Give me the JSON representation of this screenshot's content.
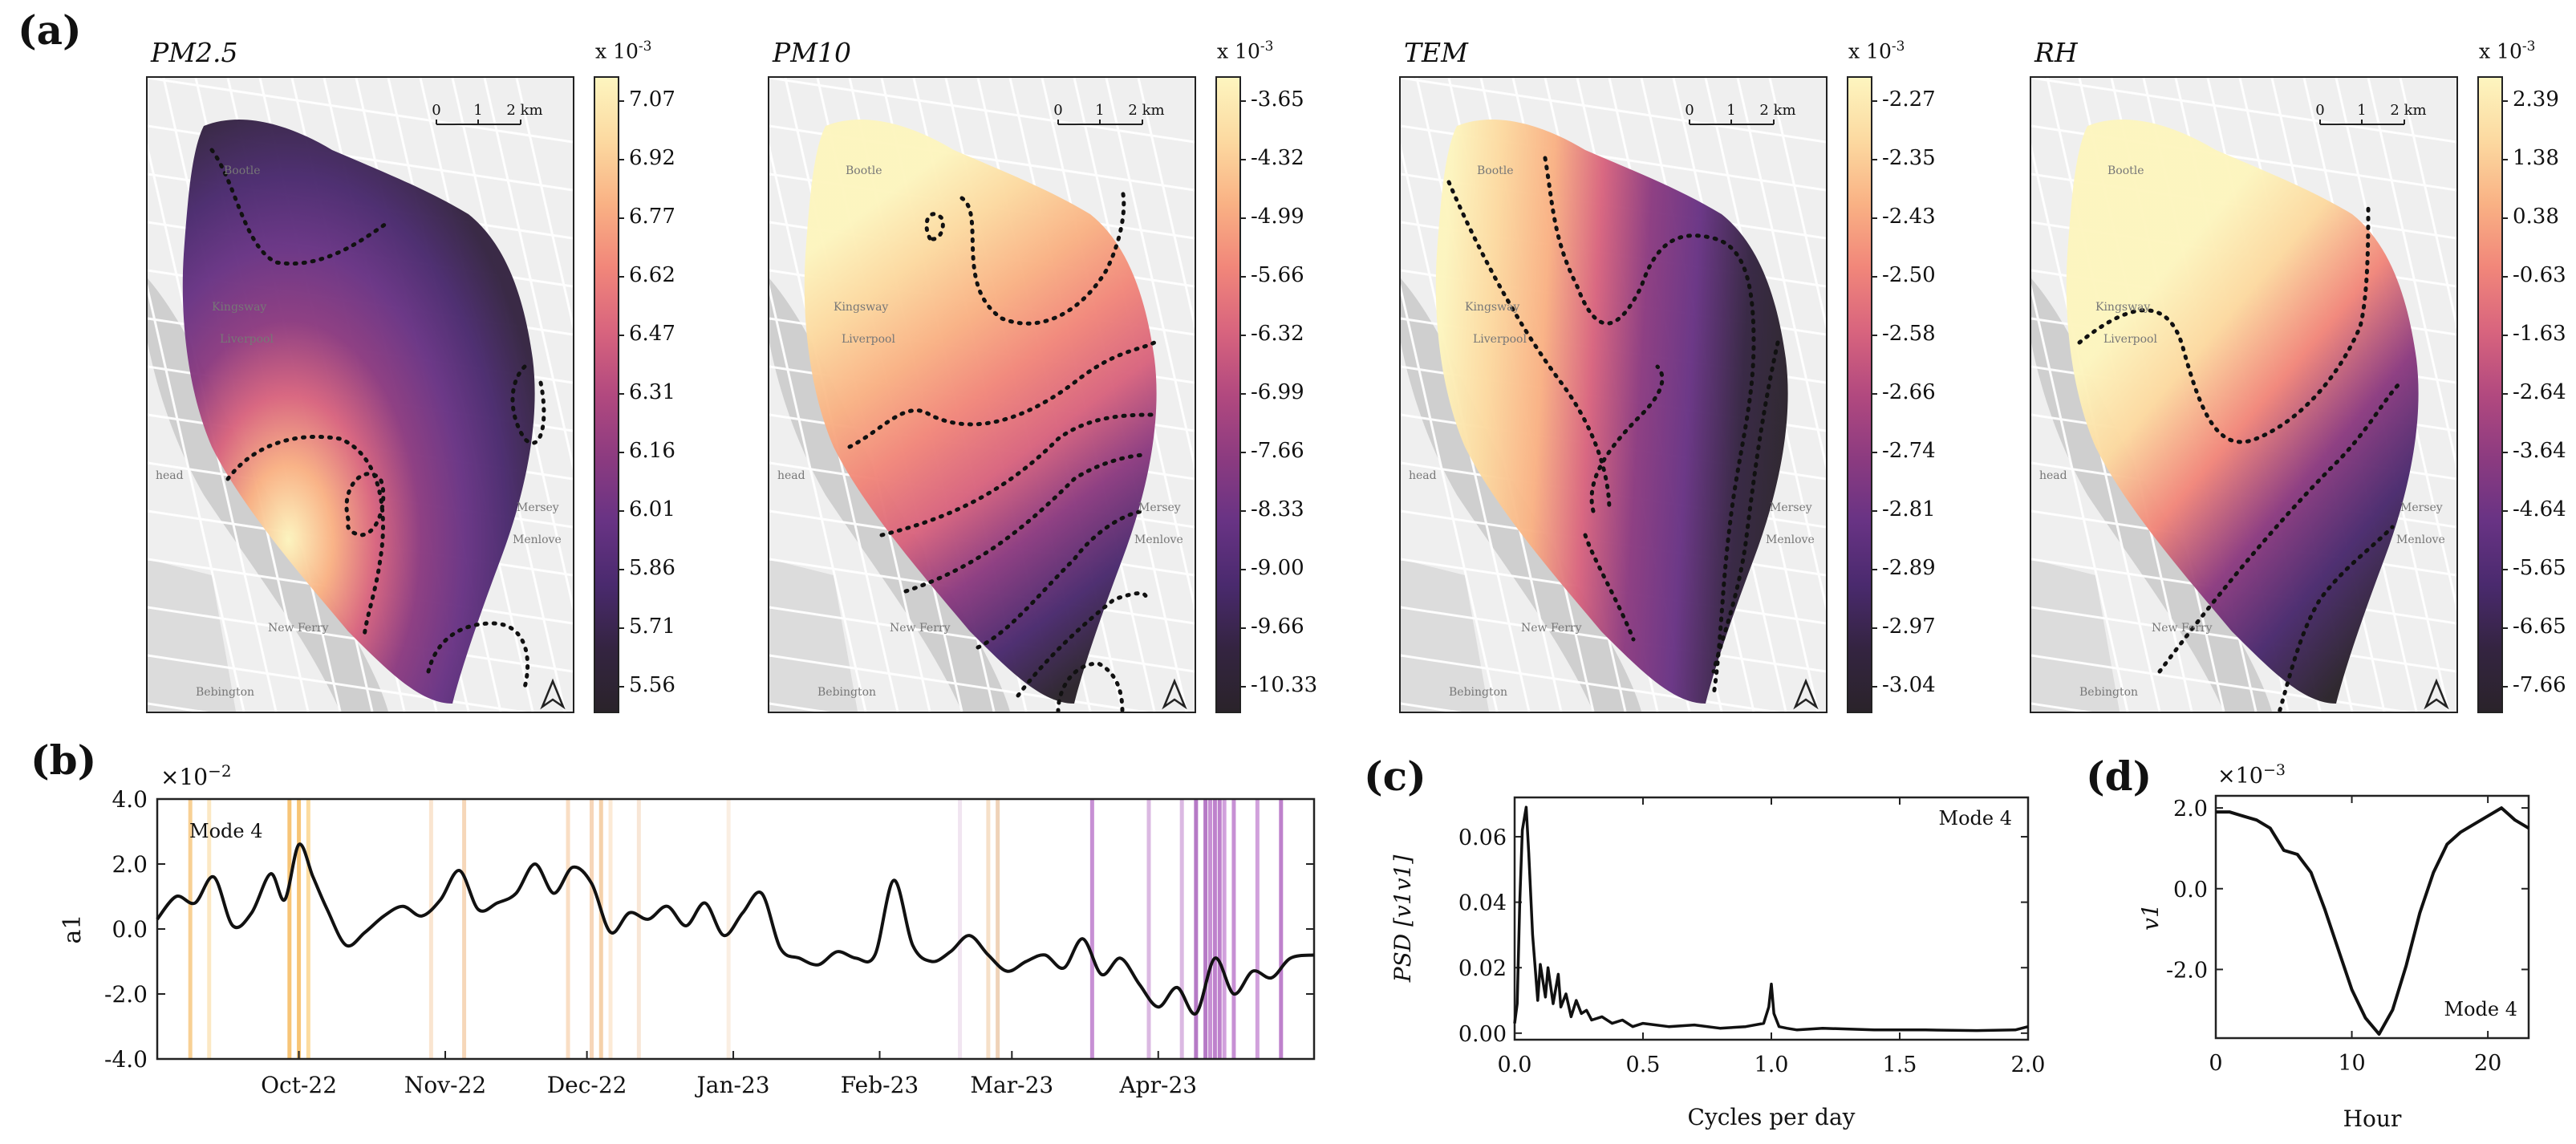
{
  "figure": {
    "panel_labels": {
      "a": "(a)",
      "b": "(b)",
      "c": "(c)",
      "d": "(d)"
    }
  },
  "maps": [
    {
      "title": "PM2.5",
      "exponent": "x 10",
      "exponent_sup": "-3",
      "ticks": [
        "7.07",
        "6.92",
        "6.77",
        "6.62",
        "6.47",
        "6.31",
        "6.16",
        "6.01",
        "5.86",
        "5.71",
        "5.56"
      ],
      "scalebar": [
        "0",
        "1",
        "2 km"
      ],
      "places": [
        "Bootle",
        "Liverpool",
        "Kingsway",
        "New Ferry",
        "Mersey",
        "Menlove",
        "head",
        "Bebington"
      ]
    },
    {
      "title": "PM10",
      "exponent": "x 10",
      "exponent_sup": "-3",
      "ticks": [
        "-3.65",
        "-4.32",
        "-4.99",
        "-5.66",
        "-6.32",
        "-6.99",
        "-7.66",
        "-8.33",
        "-9.00",
        "-9.66",
        "-10.33"
      ],
      "scalebar": [
        "0",
        "1",
        "2 km"
      ],
      "places": [
        "Bootle",
        "Liverpool",
        "Kingsway",
        "New Ferry",
        "Mersey",
        "Menlove",
        "head",
        "Bebington"
      ]
    },
    {
      "title": "TEM",
      "exponent": "x 10",
      "exponent_sup": "-3",
      "ticks": [
        "-2.27",
        "-2.35",
        "-2.43",
        "-2.50",
        "-2.58",
        "-2.66",
        "-2.74",
        "-2.81",
        "-2.89",
        "-2.97",
        "-3.04"
      ],
      "scalebar": [
        "0",
        "1",
        "2 km"
      ],
      "places": [
        "Bootle",
        "Liverpool",
        "Kingsway",
        "New Ferry",
        "Mersey",
        "Menlove",
        "head",
        "Bebington"
      ]
    },
    {
      "title": "RH",
      "exponent": "x 10",
      "exponent_sup": "-3",
      "ticks": [
        "2.39",
        "1.38",
        "0.38",
        "-0.63",
        "-1.63",
        "-2.64",
        "-3.64",
        "-4.64",
        "-5.65",
        "-6.65",
        "-7.66"
      ],
      "scalebar": [
        "0",
        "1",
        "2 km"
      ],
      "places": [
        "Bootle",
        "Liverpool",
        "Kingsway",
        "New Ferry",
        "Mersey",
        "Menlove",
        "head",
        "Bebington"
      ]
    }
  ],
  "colors": {
    "magma_stops": [
      "#fdf5bf",
      "#fcd9a0",
      "#f9b184",
      "#f1867a",
      "#d8647e",
      "#b2497f",
      "#8c3b80",
      "#683384",
      "#4a2a6e",
      "#342441",
      "#2a232a"
    ],
    "line": "#111111",
    "map_bg": "#efefef",
    "road": "#ffffff",
    "water": "#cfcfcf"
  },
  "chart_data": [
    {
      "id": "b",
      "type": "line",
      "title": "",
      "annotation": "Mode 4",
      "ylabel": "a1",
      "y_multiplier": "×10",
      "y_multiplier_sup": "−2",
      "ylim": [
        -4.0,
        4.0
      ],
      "yticks": [
        "4.0",
        "2.0",
        "0.0",
        "-2.0",
        "-4.0"
      ],
      "xlim_days": [
        0,
        245
      ],
      "xtick_days": [
        30,
        61,
        91,
        122,
        153,
        181,
        212
      ],
      "xtick_labels": [
        "Oct-22",
        "Nov-22",
        "Dec-22",
        "Jan-23",
        "Feb-23",
        "Mar-23",
        "Apr-23"
      ],
      "series": [
        {
          "name": "a1",
          "x_days": [
            0,
            4,
            8,
            12,
            16,
            20,
            24,
            27,
            30,
            33,
            36,
            40,
            44,
            48,
            52,
            56,
            60,
            64,
            68,
            72,
            76,
            80,
            84,
            88,
            92,
            96,
            100,
            104,
            108,
            112,
            116,
            120,
            124,
            128,
            132,
            136,
            140,
            144,
            148,
            152,
            156,
            160,
            164,
            168,
            172,
            176,
            180,
            184,
            188,
            192,
            196,
            200,
            204,
            208,
            212,
            216,
            220,
            224,
            228,
            232,
            236,
            240,
            245
          ],
          "values": [
            0.3,
            1.0,
            0.8,
            1.6,
            0.1,
            0.5,
            1.7,
            0.9,
            2.6,
            1.6,
            0.6,
            -0.5,
            -0.1,
            0.4,
            0.7,
            0.4,
            0.9,
            1.8,
            0.6,
            0.8,
            1.1,
            2.0,
            1.1,
            1.9,
            1.4,
            -0.1,
            0.5,
            0.3,
            0.7,
            0.1,
            0.8,
            -0.2,
            0.5,
            1.1,
            -0.6,
            -0.9,
            -1.1,
            -0.7,
            -0.9,
            -0.8,
            1.5,
            -0.5,
            -1.0,
            -0.7,
            -0.2,
            -0.8,
            -1.3,
            -1.0,
            -0.8,
            -1.2,
            -0.3,
            -1.4,
            -0.9,
            -1.7,
            -2.4,
            -1.8,
            -2.6,
            -0.9,
            -2.0,
            -1.3,
            -1.5,
            -0.9,
            -0.8
          ]
        }
      ],
      "highlight_days": [
        {
          "day": 7,
          "color": "#f6c070"
        },
        {
          "day": 11,
          "color": "#fbe0b0"
        },
        {
          "day": 28,
          "color": "#f4b24a"
        },
        {
          "day": 30,
          "color": "#f4b24a"
        },
        {
          "day": 32,
          "color": "#fbd080"
        },
        {
          "day": 58,
          "color": "#f8dcc0"
        },
        {
          "day": 65,
          "color": "#f3c9a2"
        },
        {
          "day": 87,
          "color": "#f7d3b0"
        },
        {
          "day": 92,
          "color": "#f3c8a2"
        },
        {
          "day": 94,
          "color": "#f2c18c"
        },
        {
          "day": 96,
          "color": "#fbe3c8"
        },
        {
          "day": 102,
          "color": "#f6ddc8"
        },
        {
          "day": 121,
          "color": "#f8e8d8"
        },
        {
          "day": 170,
          "color": "#ecdcec"
        },
        {
          "day": 176,
          "color": "#f3d5b5"
        },
        {
          "day": 178,
          "color": "#e9c3a0"
        },
        {
          "day": 198,
          "color": "#b46bc5"
        },
        {
          "day": 210,
          "color": "#cfa2d8"
        },
        {
          "day": 217,
          "color": "#cfa2d8"
        },
        {
          "day": 220,
          "color": "#9e4db3"
        },
        {
          "day": 222,
          "color": "#9e4db3"
        },
        {
          "day": 223,
          "color": "#b46bc5"
        },
        {
          "day": 224,
          "color": "#a857bb"
        },
        {
          "day": 225,
          "color": "#a857bb"
        },
        {
          "day": 226,
          "color": "#c182d0"
        },
        {
          "day": 228,
          "color": "#b46bc5"
        },
        {
          "day": 233,
          "color": "#c182d0"
        },
        {
          "day": 238,
          "color": "#a857bb"
        }
      ]
    },
    {
      "id": "c",
      "type": "line",
      "title": "",
      "annotation": "Mode 4",
      "xlabel": "Cycles per day",
      "ylabel": "PSD [v1v1]",
      "xlim": [
        0.0,
        2.0
      ],
      "ylim": [
        -0.002,
        0.072
      ],
      "xticks": [
        "0.0",
        "0.5",
        "1.0",
        "1.5",
        "2.0"
      ],
      "yticks": [
        "0.06",
        "0.04",
        "0.02",
        "0.00"
      ],
      "series": [
        {
          "name": "PSD",
          "x": [
            0.0,
            0.01,
            0.02,
            0.03,
            0.045,
            0.055,
            0.07,
            0.09,
            0.1,
            0.12,
            0.13,
            0.15,
            0.17,
            0.18,
            0.2,
            0.22,
            0.24,
            0.26,
            0.28,
            0.3,
            0.34,
            0.38,
            0.42,
            0.46,
            0.5,
            0.6,
            0.7,
            0.8,
            0.9,
            0.97,
            0.99,
            1.0,
            1.01,
            1.03,
            1.06,
            1.1,
            1.2,
            1.4,
            1.6,
            1.8,
            1.95,
            2.0
          ],
          "values": [
            0.003,
            0.009,
            0.04,
            0.062,
            0.069,
            0.055,
            0.03,
            0.01,
            0.021,
            0.011,
            0.02,
            0.009,
            0.018,
            0.008,
            0.012,
            0.005,
            0.01,
            0.006,
            0.007,
            0.004,
            0.005,
            0.003,
            0.004,
            0.002,
            0.003,
            0.002,
            0.0025,
            0.0015,
            0.002,
            0.003,
            0.008,
            0.015,
            0.006,
            0.002,
            0.0015,
            0.001,
            0.0015,
            0.001,
            0.001,
            0.0008,
            0.001,
            0.002
          ]
        }
      ]
    },
    {
      "id": "d",
      "type": "line",
      "title": "",
      "annotation": "Mode 4",
      "xlabel": "Hour",
      "ylabel": "v1",
      "y_multiplier": "×10",
      "y_multiplier_sup": "−3",
      "xlim": [
        0,
        23
      ],
      "ylim": [
        -3.7,
        2.3
      ],
      "xticks": [
        "0",
        "10",
        "20"
      ],
      "yticks": [
        "2.0",
        "0.0",
        "-2.0"
      ],
      "series": [
        {
          "name": "v1",
          "x": [
            0,
            1,
            2,
            3,
            4,
            5,
            6,
            7,
            8,
            9,
            10,
            11,
            12,
            13,
            14,
            15,
            16,
            17,
            18,
            19,
            20,
            21,
            22,
            23
          ],
          "values": [
            1.9,
            1.9,
            1.8,
            1.7,
            1.5,
            0.95,
            0.85,
            0.4,
            -0.5,
            -1.5,
            -2.5,
            -3.2,
            -3.6,
            -3.0,
            -1.9,
            -0.6,
            0.4,
            1.1,
            1.4,
            1.6,
            1.8,
            2.0,
            1.7,
            1.5
          ]
        }
      ]
    }
  ]
}
